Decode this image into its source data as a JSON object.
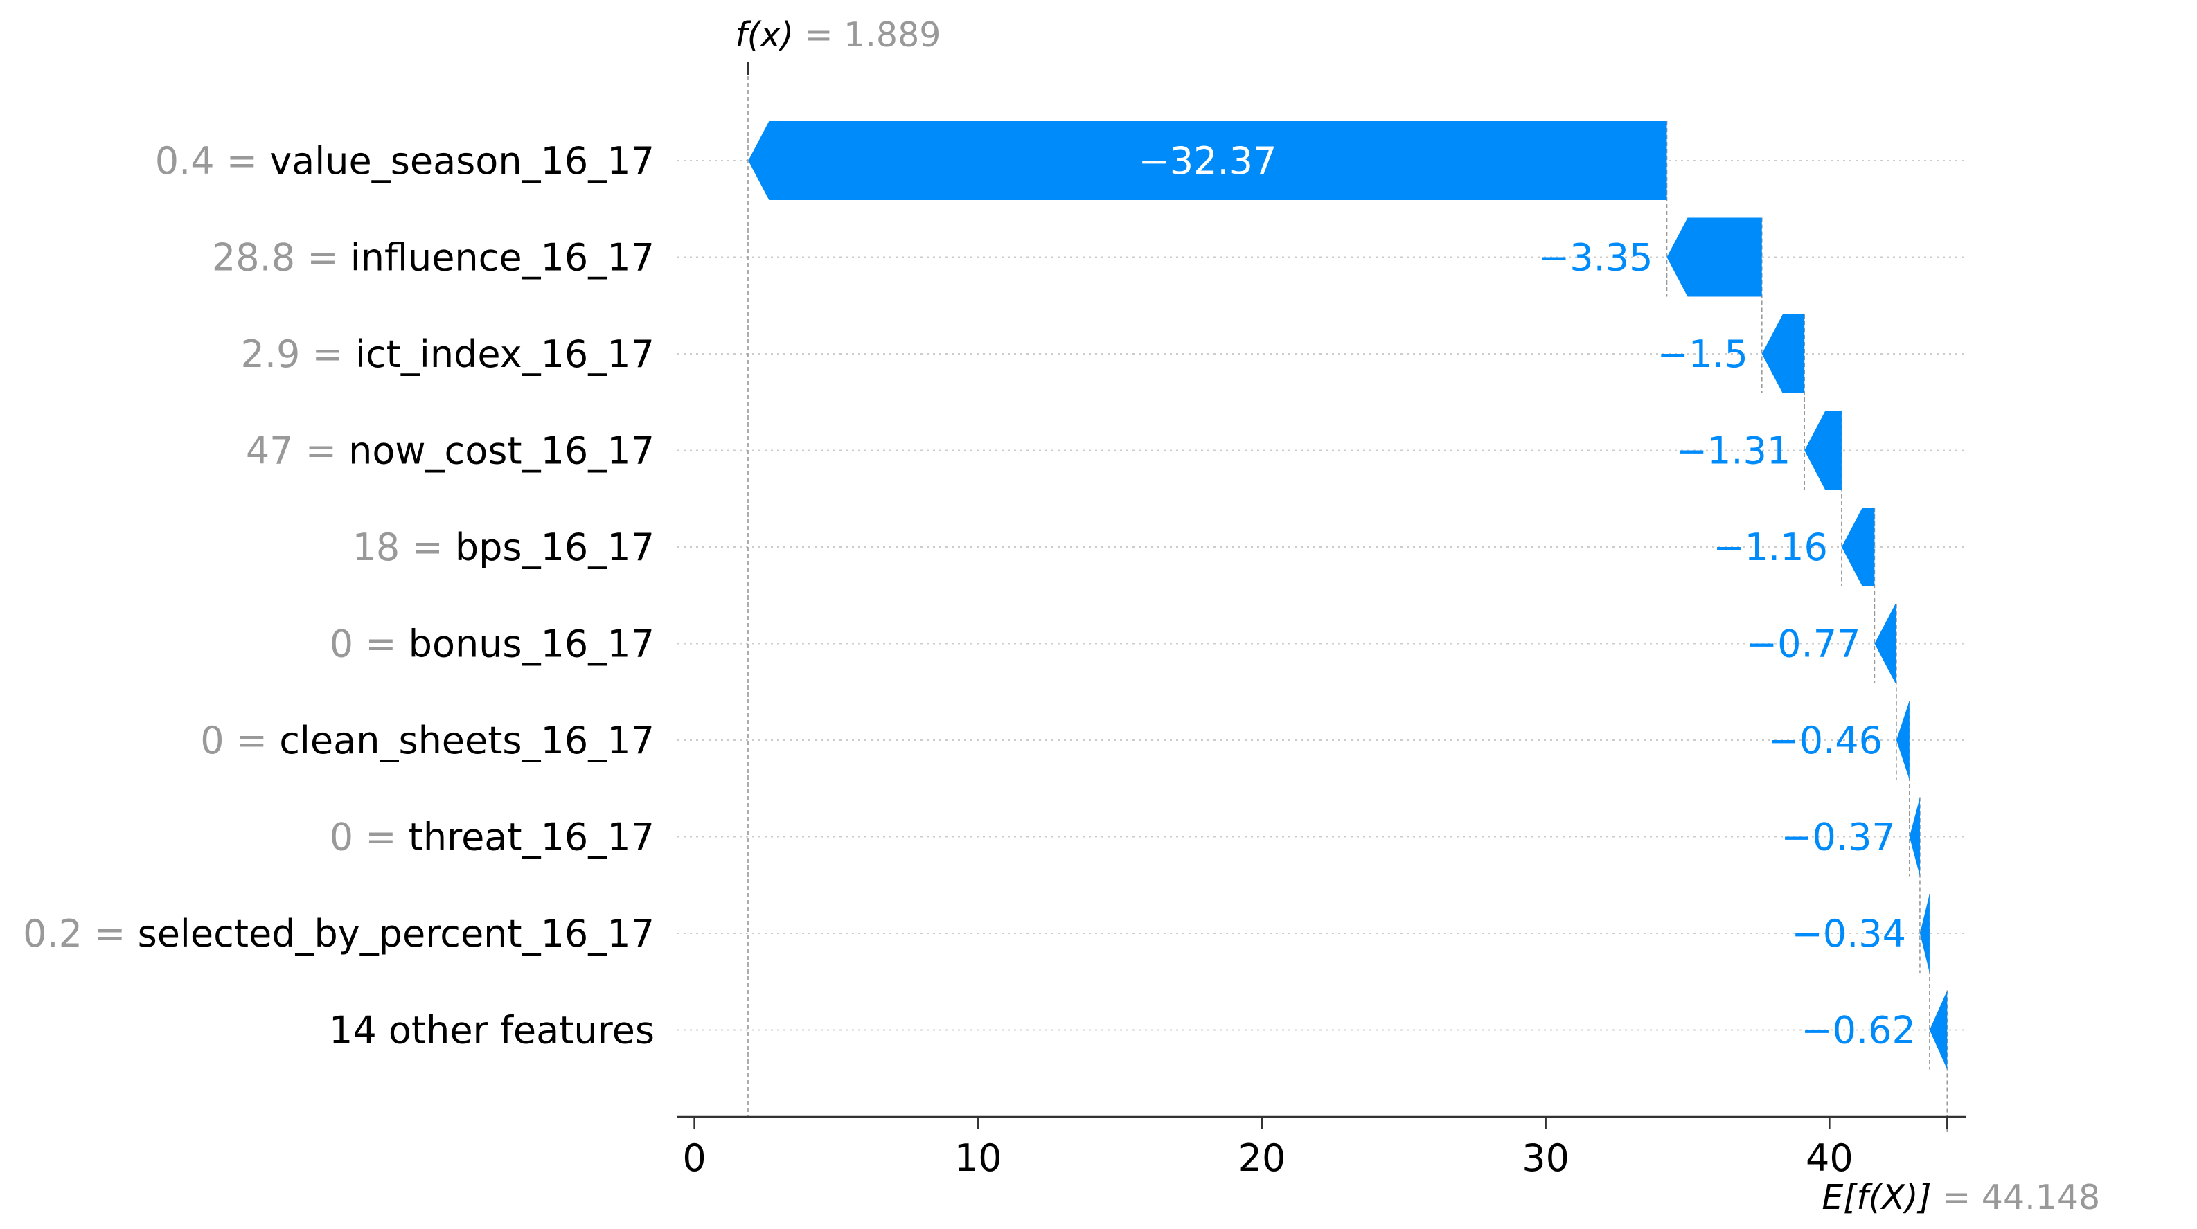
{
  "chart_data": {
    "type": "waterfall",
    "title": "",
    "xlabel": "",
    "ylabel": "",
    "xlim": [
      -0.6,
      44.8
    ],
    "x_ticks": [
      0,
      10,
      20,
      30,
      40
    ],
    "base_value": 44.148,
    "base_value_text": "= 44.148",
    "base_label": "E[f(X)]",
    "output_value": 1.889,
    "output_value_text": "= 1.889",
    "output_label": "f(x)",
    "colors": {
      "negative": "#008bfb",
      "positive": "#ff0051",
      "inside_label": "#ffffff",
      "feature_value": "#999999",
      "feature_name": "#000000",
      "gridline": "#cccccc",
      "axis": "#333333"
    },
    "features": [
      {
        "value": "0.4",
        "name": "value_season_16_17",
        "contribution": -32.37,
        "label": "−32.37"
      },
      {
        "value": "28.8",
        "name": "influence_16_17",
        "contribution": -3.35,
        "label": "−3.35"
      },
      {
        "value": "2.9",
        "name": "ict_index_16_17",
        "contribution": -1.5,
        "label": "−1.5"
      },
      {
        "value": "47",
        "name": "now_cost_16_17",
        "contribution": -1.31,
        "label": "−1.31"
      },
      {
        "value": "18",
        "name": "bps_16_17",
        "contribution": -1.16,
        "label": "−1.16"
      },
      {
        "value": "0",
        "name": "bonus_16_17",
        "contribution": -0.77,
        "label": "−0.77"
      },
      {
        "value": "0",
        "name": "clean_sheets_16_17",
        "contribution": -0.46,
        "label": "−0.46"
      },
      {
        "value": "0",
        "name": "threat_16_17",
        "contribution": -0.37,
        "label": "−0.37"
      },
      {
        "value": "0.2",
        "name": "selected_by_percent_16_17",
        "contribution": -0.34,
        "label": "−0.34"
      },
      {
        "value": "",
        "name": "14 other features",
        "contribution": -0.62,
        "label": "−0.62"
      }
    ]
  }
}
